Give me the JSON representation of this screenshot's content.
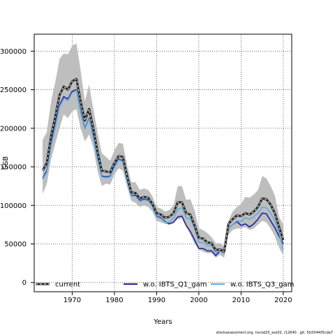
{
  "chart_data": {
    "type": "line",
    "xlabel": "Years",
    "ylabel": "SSB",
    "xlim": [
      1961,
      2022
    ],
    "ylim": [
      -12000,
      322000
    ],
    "x_ticks": [
      1970,
      1980,
      1990,
      2000,
      2010,
      2020
    ],
    "y_ticks": [
      0,
      50000,
      100000,
      150000,
      200000,
      250000,
      300000
    ],
    "y_tick_labels": [
      "0",
      "50000",
      "100000",
      "150000",
      "200000",
      "250000",
      "300000"
    ],
    "grid": true,
    "legend_position": "bottom",
    "x": [
      1963,
      1964,
      1965,
      1966,
      1967,
      1968,
      1969,
      1970,
      1971,
      1972,
      1973,
      1974,
      1975,
      1976,
      1977,
      1978,
      1979,
      1980,
      1981,
      1982,
      1983,
      1984,
      1985,
      1986,
      1987,
      1988,
      1989,
      1990,
      1991,
      1992,
      1993,
      1994,
      1995,
      1996,
      1997,
      1998,
      1999,
      2000,
      2001,
      2002,
      2003,
      2004,
      2005,
      2006,
      2007,
      2008,
      2009,
      2010,
      2011,
      2012,
      2013,
      2014,
      2015,
      2016,
      2017,
      2018,
      2019,
      2020
    ],
    "band": {
      "color": "#bebebe",
      "upper": [
        185000,
        195000,
        235000,
        260000,
        290000,
        297000,
        296000,
        307000,
        310000,
        275000,
        235000,
        257000,
        225000,
        195000,
        168000,
        163000,
        158000,
        171000,
        181000,
        180000,
        152000,
        130000,
        130000,
        120000,
        122000,
        120000,
        112000,
        98000,
        96000,
        92000,
        94000,
        100000,
        125000,
        125000,
        107000,
        108000,
        93000,
        70000,
        68000,
        64000,
        59000,
        51000,
        51000,
        47000,
        80000,
        92000,
        98000,
        102000,
        111000,
        110000,
        114000,
        120000,
        138000,
        135000,
        125000,
        113000,
        85000,
        75000
      ],
      "lower": [
        115000,
        128000,
        160000,
        180000,
        200000,
        218000,
        213000,
        222000,
        225000,
        200000,
        183000,
        192000,
        175000,
        145000,
        125000,
        128000,
        127000,
        140000,
        148000,
        145000,
        124000,
        106000,
        103000,
        98000,
        100000,
        98000,
        92000,
        80000,
        78000,
        76000,
        75000,
        78000,
        82000,
        83000,
        72000,
        62000,
        50000,
        43000,
        40000,
        38000,
        38000,
        32000,
        36000,
        32000,
        62000,
        68000,
        70000,
        70000,
        72000,
        68000,
        70000,
        75000,
        80000,
        78000,
        70000,
        60000,
        45000,
        35000
      ]
    },
    "series": [
      {
        "name": "current",
        "color": "#222222",
        "dashed": true,
        "values": [
          145000,
          155000,
          190000,
          215000,
          243000,
          254000,
          250000,
          261000,
          264000,
          235000,
          210000,
          225000,
          200000,
          170000,
          145000,
          144000,
          143000,
          155000,
          164000,
          163000,
          138000,
          117000,
          116000,
          109000,
          111000,
          110000,
          102000,
          90000,
          88000,
          84000,
          85000,
          90000,
          104000,
          104000,
          90000,
          88000,
          74000,
          58000,
          57000,
          52000,
          51000,
          42000,
          43000,
          40000,
          76000,
          82000,
          87000,
          86000,
          90000,
          88000,
          92000,
          98000,
          109000,
          108000,
          101000,
          90000,
          72000,
          55000
        ]
      },
      {
        "name": "w.o. IBTS_Q1_gam",
        "color": "#22229e",
        "dashed": false,
        "values": [
          135000,
          145000,
          180000,
          205000,
          230000,
          241000,
          238000,
          248000,
          250000,
          222000,
          200000,
          213000,
          190000,
          162000,
          138000,
          137000,
          138000,
          150000,
          160000,
          158000,
          133000,
          113000,
          113000,
          106000,
          108000,
          107000,
          100000,
          86000,
          84000,
          79000,
          76000,
          78000,
          85000,
          86000,
          74000,
          66000,
          55000,
          44000,
          44000,
          41000,
          41000,
          35000,
          41000,
          38000,
          70000,
          75000,
          79000,
          74000,
          76000,
          72000,
          76000,
          82000,
          90000,
          89000,
          80000,
          71000,
          60000,
          50000
        ]
      },
      {
        "name": "w.o. IBTS_Q3_gam",
        "color": "#5aaee6",
        "dashed": false,
        "values": [
          134000,
          143000,
          177000,
          202000,
          228000,
          238000,
          236000,
          246000,
          249000,
          220000,
          199000,
          212000,
          188000,
          160000,
          137000,
          136000,
          137000,
          149000,
          159000,
          157000,
          132000,
          112000,
          112000,
          105000,
          107000,
          106000,
          99000,
          85000,
          83000,
          78000,
          78000,
          83000,
          95000,
          97000,
          84000,
          82000,
          70000,
          52000,
          52000,
          48000,
          48000,
          39000,
          41000,
          38000,
          70000,
          75000,
          80000,
          79000,
          84000,
          82000,
          85000,
          90000,
          98000,
          97000,
          90000,
          80000,
          64000,
          43000
        ]
      }
    ]
  },
  "footer_text": "stockassessment.org, nscod20_ass02, r12640 , git: 5b334405cda7"
}
